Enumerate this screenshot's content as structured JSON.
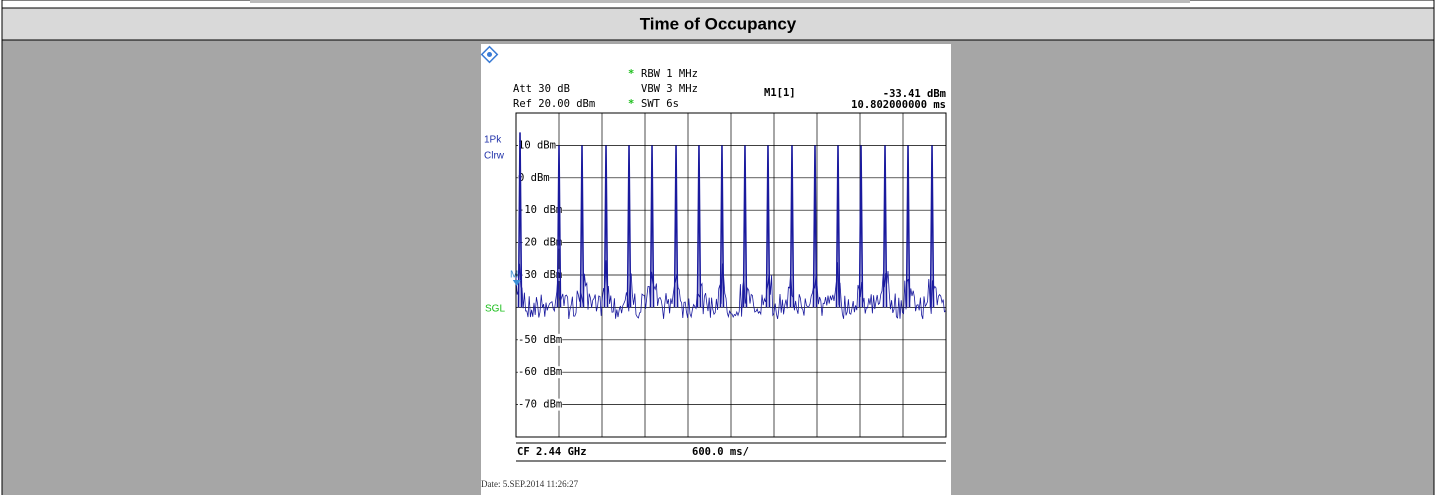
{
  "header": {
    "title": "Time of Occupancy"
  },
  "screen": {
    "att": "Att  30 dB",
    "ref": "Ref  20.00 dBm",
    "flag": "*",
    "rbw": "RBW 1 MHz",
    "vbw": "VBW 3 MHz",
    "swt": "SWT 6s",
    "marker_name": "M1[1]",
    "trace_mode": [
      "1Pk",
      "Clrw"
    ],
    "sgl": "SGL",
    "marker_label": "M1",
    "center": "CF 2.44 GHz",
    "span": "600.0 ms/",
    "date": "Date: 5.SEP.2014  11:26:27"
  },
  "chart_data": {
    "type": "line",
    "xlim": [
      0,
      6000
    ],
    "ylim": [
      -80,
      20
    ],
    "yticks": [
      {
        "value": 10,
        "label": "10 dBm"
      },
      {
        "value": 0,
        "label": "0 dBm"
      },
      {
        "value": -10,
        "label": "-10 dBm"
      },
      {
        "value": -20,
        "label": "-20 dBm"
      },
      {
        "value": -30,
        "label": "-30 dBm"
      },
      {
        "value": -40,
        "label": ""
      },
      {
        "value": -50,
        "label": "-50 dBm"
      },
      {
        "value": -60,
        "label": "-60 dBm"
      },
      {
        "value": -70,
        "label": "-70 dBm"
      }
    ],
    "peaks_x": [
      56,
      600,
      921,
      1256,
      1577,
      1898,
      2233,
      2553,
      2874,
      3195,
      3516,
      3851,
      4172,
      4493,
      4814,
      5149,
      5470,
      5805
    ],
    "peaks_y": [
      14,
      10,
      10,
      10,
      10,
      10,
      10,
      10,
      10,
      10,
      10,
      10,
      10,
      10,
      10,
      10,
      10,
      10
    ],
    "marker": {
      "x": 10.802,
      "y": -33.41,
      "level_label": "-33.41 dBm",
      "time_label": "10.802000000 ms"
    }
  }
}
